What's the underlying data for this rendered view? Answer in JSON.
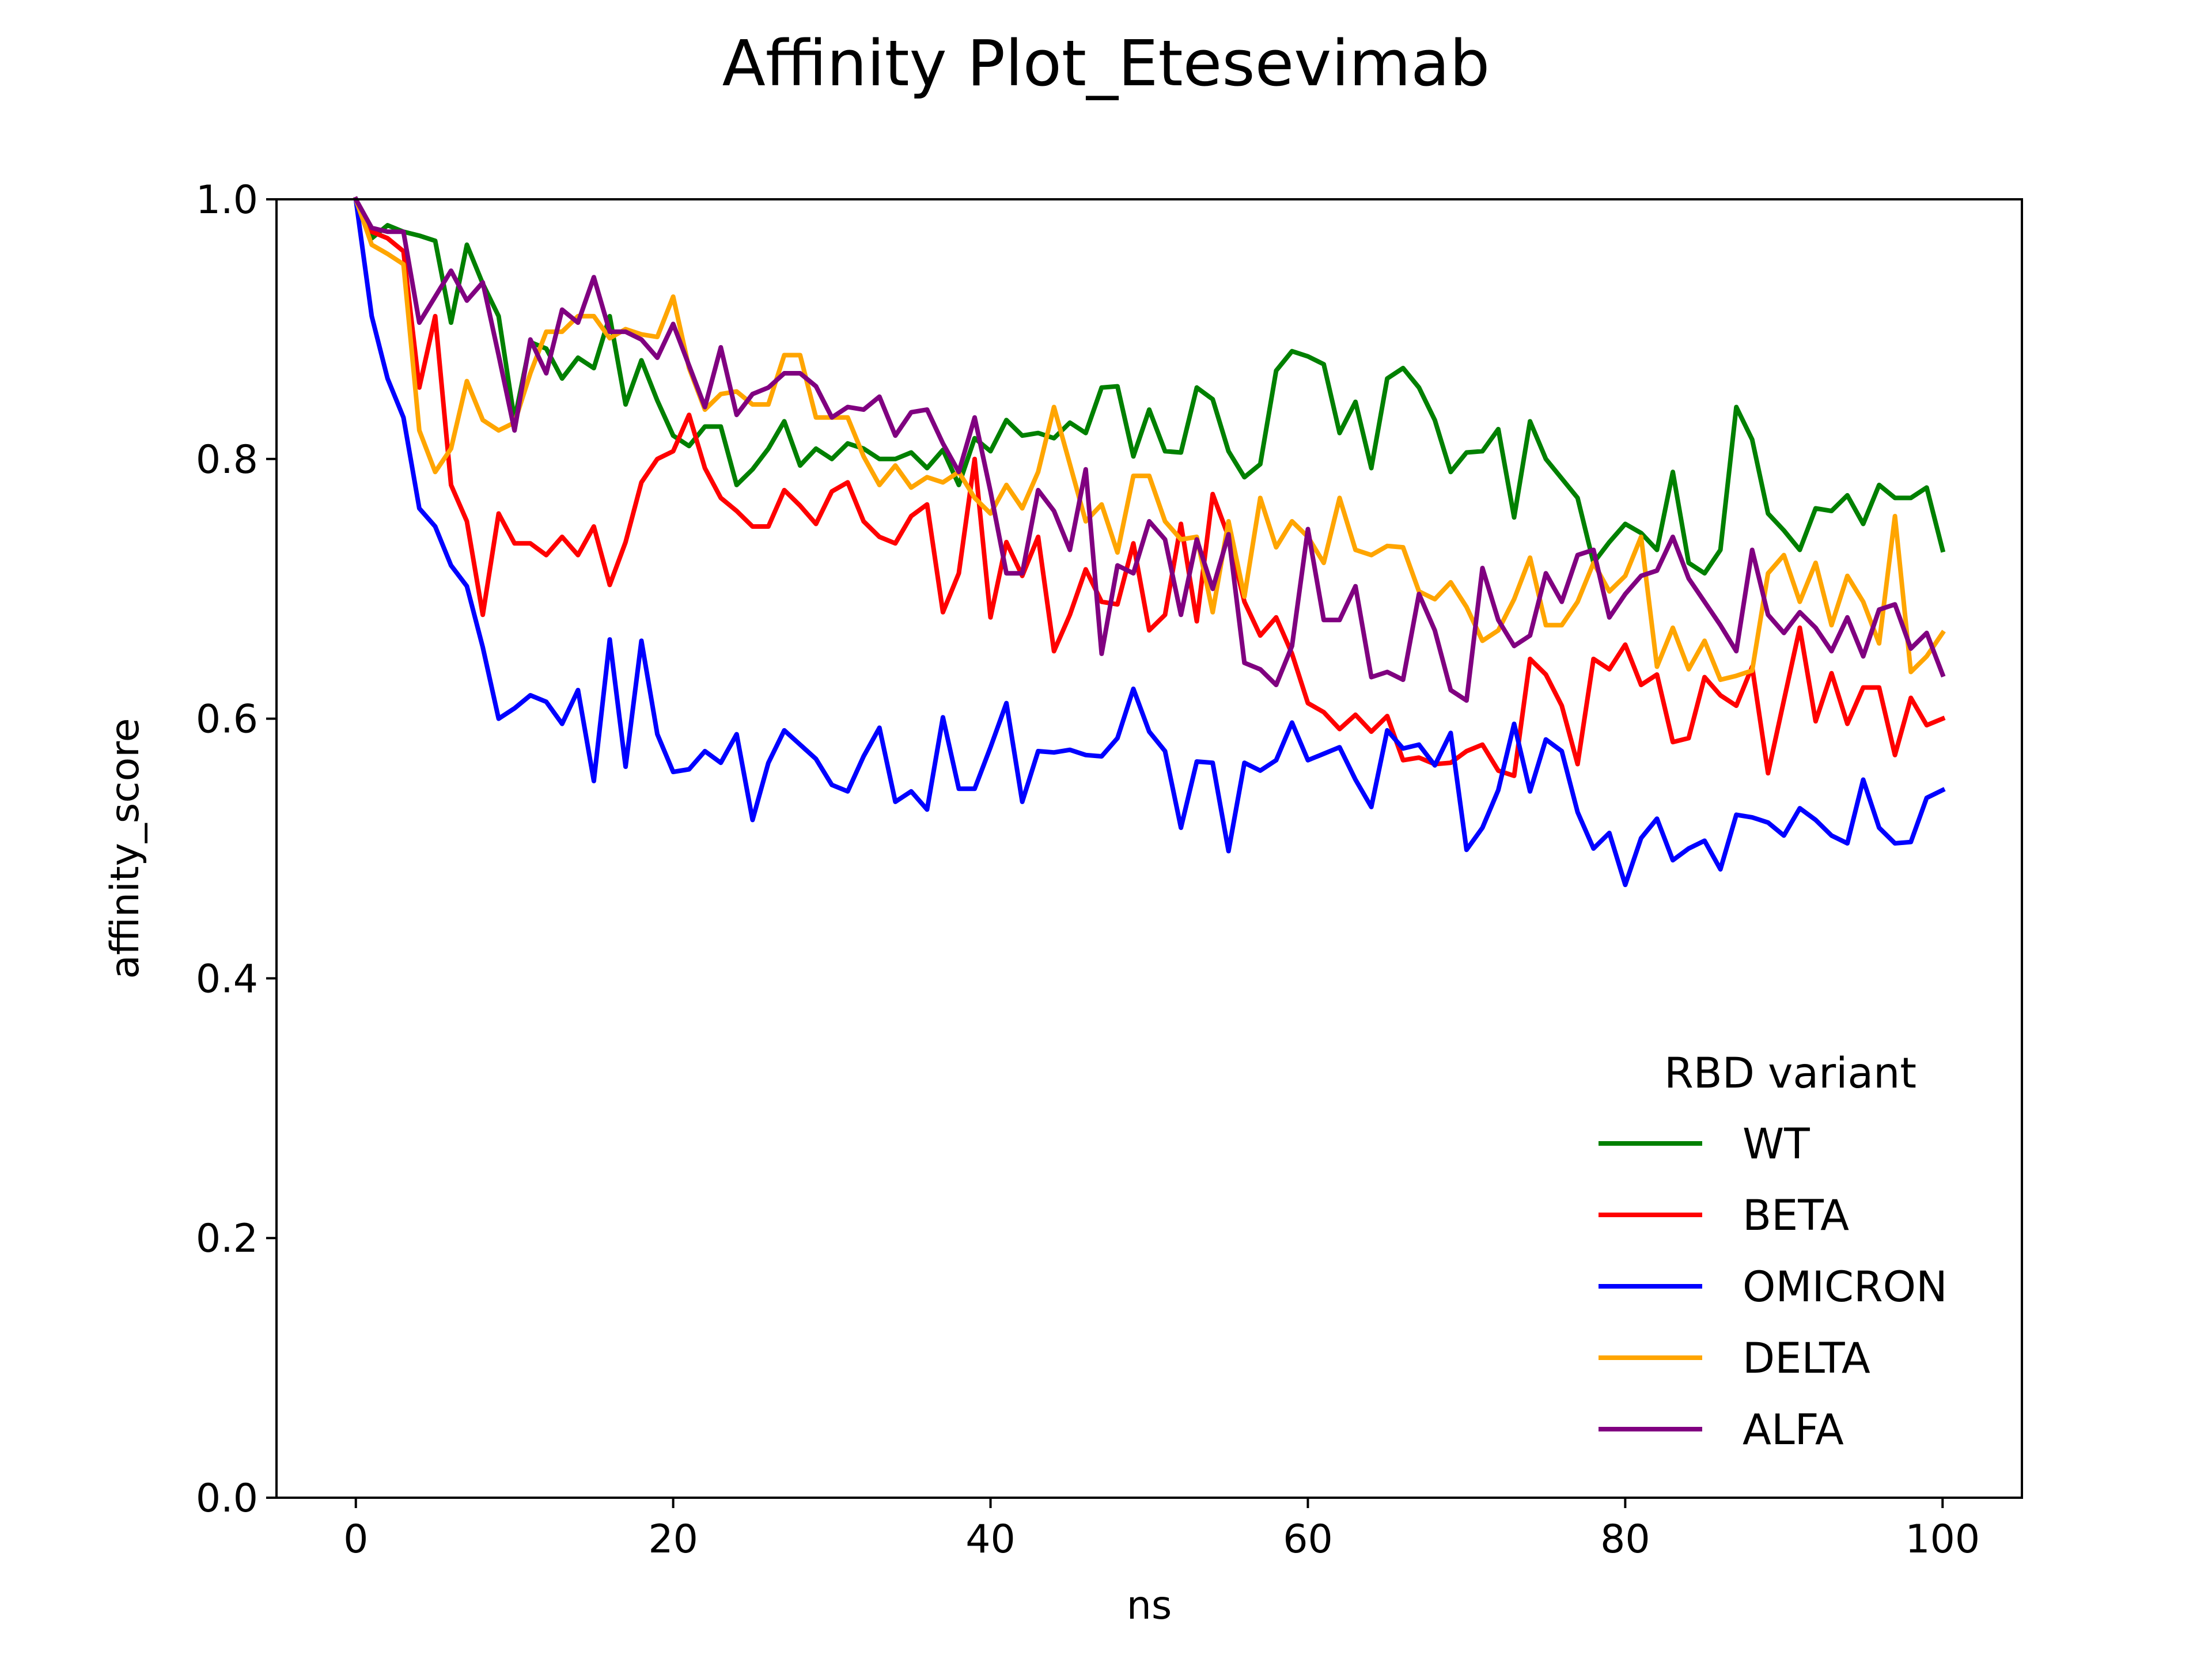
{
  "chart_data": {
    "type": "line",
    "title": "Affinity Plot_Etesevimab",
    "xlabel": "ns",
    "ylabel": "affinity_score",
    "xlim": [
      -5,
      105
    ],
    "ylim": [
      0,
      1
    ],
    "xticks": [
      0,
      20,
      40,
      60,
      80,
      100
    ],
    "xtick_labels": [
      "0",
      "20",
      "40",
      "60",
      "80",
      "100"
    ],
    "yticks": [
      0,
      0.2,
      0.4,
      0.6,
      0.8,
      1.0
    ],
    "ytick_labels": [
      "0.0",
      "0.2",
      "0.4",
      "0.6",
      "0.8",
      "1.0"
    ],
    "grid": false,
    "legend": {
      "title": "RBD variant",
      "placement": "lower-right"
    },
    "x": [
      0,
      1,
      2,
      3,
      4,
      5,
      6,
      7,
      8,
      9,
      10,
      11,
      12,
      13,
      14,
      15,
      16,
      17,
      18,
      19,
      20,
      21,
      22,
      23,
      24,
      25,
      26,
      27,
      28,
      29,
      30,
      31,
      32,
      33,
      34,
      35,
      36,
      37,
      38,
      39,
      40,
      41,
      42,
      43,
      44,
      45,
      46,
      47,
      48,
      49,
      50,
      51,
      52,
      53,
      54,
      55,
      56,
      57,
      58,
      59,
      60,
      61,
      62,
      63,
      64,
      65,
      66,
      67,
      68,
      69,
      70,
      71,
      72,
      73,
      74,
      75,
      76,
      77,
      78,
      79,
      80,
      81,
      82,
      83,
      84,
      85,
      86,
      87,
      88,
      89,
      90,
      91,
      92,
      93,
      94,
      95,
      96,
      97,
      98,
      99,
      100
    ],
    "series": [
      {
        "name": "WT",
        "color": "#008000",
        "values": [
          1.0,
          0.97,
          0.98,
          0.975,
          0.972,
          0.968,
          0.905,
          0.965,
          0.935,
          0.91,
          0.83,
          0.89,
          0.885,
          0.862,
          0.878,
          0.87,
          0.91,
          0.842,
          0.876,
          0.845,
          0.818,
          0.81,
          0.825,
          0.825,
          0.78,
          0.792,
          0.808,
          0.829,
          0.795,
          0.808,
          0.8,
          0.812,
          0.808,
          0.8,
          0.8,
          0.805,
          0.793,
          0.807,
          0.78,
          0.816,
          0.806,
          0.83,
          0.818,
          0.82,
          0.816,
          0.828,
          0.82,
          0.855,
          0.856,
          0.802,
          0.838,
          0.806,
          0.805,
          0.855,
          0.846,
          0.806,
          0.786,
          0.796,
          0.868,
          0.883,
          0.879,
          0.873,
          0.82,
          0.844,
          0.793,
          0.862,
          0.87,
          0.855,
          0.83,
          0.79,
          0.805,
          0.806,
          0.823,
          0.755,
          0.829,
          0.8,
          0.785,
          0.77,
          0.72,
          0.736,
          0.75,
          0.743,
          0.73,
          0.79,
          0.72,
          0.712,
          0.73,
          0.84,
          0.815,
          0.758,
          0.745,
          0.73,
          0.762,
          0.76,
          0.772,
          0.75,
          0.78,
          0.77,
          0.77,
          0.778,
          0.73
        ]
      },
      {
        "name": "BETA",
        "color": "#ff0000",
        "values": [
          1.0,
          0.975,
          0.97,
          0.96,
          0.855,
          0.91,
          0.78,
          0.752,
          0.68,
          0.758,
          0.735,
          0.735,
          0.726,
          0.74,
          0.726,
          0.748,
          0.703,
          0.736,
          0.782,
          0.8,
          0.806,
          0.834,
          0.793,
          0.77,
          0.76,
          0.748,
          0.748,
          0.776,
          0.764,
          0.75,
          0.775,
          0.782,
          0.752,
          0.74,
          0.735,
          0.756,
          0.765,
          0.682,
          0.712,
          0.8,
          0.678,
          0.736,
          0.71,
          0.74,
          0.652,
          0.68,
          0.715,
          0.69,
          0.688,
          0.735,
          0.668,
          0.68,
          0.75,
          0.675,
          0.773,
          0.74,
          0.69,
          0.664,
          0.678,
          0.65,
          0.612,
          0.605,
          0.592,
          0.603,
          0.59,
          0.602,
          0.568,
          0.57,
          0.565,
          0.566,
          0.575,
          0.58,
          0.56,
          0.556,
          0.646,
          0.634,
          0.61,
          0.565,
          0.646,
          0.638,
          0.657,
          0.626,
          0.634,
          0.582,
          0.585,
          0.632,
          0.618,
          0.61,
          0.64,
          0.558,
          0.614,
          0.67,
          0.598,
          0.635,
          0.596,
          0.624,
          0.624,
          0.572,
          0.616,
          0.595,
          0.6
        ]
      },
      {
        "name": "OMICRON",
        "color": "#0000ff",
        "values": [
          1.0,
          0.91,
          0.862,
          0.832,
          0.762,
          0.748,
          0.718,
          0.702,
          0.655,
          0.6,
          0.608,
          0.618,
          0.613,
          0.596,
          0.622,
          0.552,
          0.661,
          0.563,
          0.66,
          0.588,
          0.559,
          0.561,
          0.575,
          0.566,
          0.588,
          0.522,
          0.566,
          0.591,
          0.58,
          0.569,
          0.549,
          0.544,
          0.571,
          0.593,
          0.536,
          0.544,
          0.53,
          0.601,
          0.546,
          0.546,
          0.578,
          0.612,
          0.536,
          0.575,
          0.574,
          0.576,
          0.572,
          0.571,
          0.585,
          0.623,
          0.59,
          0.575,
          0.516,
          0.567,
          0.566,
          0.498,
          0.566,
          0.56,
          0.568,
          0.597,
          0.568,
          0.573,
          0.578,
          0.553,
          0.532,
          0.591,
          0.577,
          0.58,
          0.564,
          0.589,
          0.499,
          0.516,
          0.545,
          0.596,
          0.544,
          0.584,
          0.575,
          0.528,
          0.5,
          0.512,
          0.472,
          0.508,
          0.523,
          0.491,
          0.5,
          0.506,
          0.484,
          0.526,
          0.524,
          0.52,
          0.51,
          0.531,
          0.522,
          0.51,
          0.504,
          0.553,
          0.516,
          0.504,
          0.505,
          0.539,
          0.545
        ]
      },
      {
        "name": "DELTA",
        "color": "#ffa500",
        "values": [
          1.0,
          0.965,
          0.958,
          0.95,
          0.822,
          0.79,
          0.808,
          0.86,
          0.83,
          0.822,
          0.828,
          0.866,
          0.898,
          0.898,
          0.91,
          0.91,
          0.893,
          0.9,
          0.896,
          0.894,
          0.925,
          0.87,
          0.838,
          0.85,
          0.852,
          0.842,
          0.842,
          0.88,
          0.88,
          0.832,
          0.832,
          0.832,
          0.802,
          0.78,
          0.795,
          0.778,
          0.786,
          0.782,
          0.79,
          0.77,
          0.758,
          0.78,
          0.762,
          0.79,
          0.84,
          0.796,
          0.752,
          0.765,
          0.728,
          0.787,
          0.787,
          0.752,
          0.738,
          0.74,
          0.682,
          0.752,
          0.694,
          0.77,
          0.732,
          0.752,
          0.74,
          0.72,
          0.77,
          0.73,
          0.726,
          0.733,
          0.732,
          0.698,
          0.692,
          0.705,
          0.686,
          0.66,
          0.668,
          0.692,
          0.724,
          0.672,
          0.672,
          0.69,
          0.72,
          0.698,
          0.71,
          0.74,
          0.64,
          0.67,
          0.638,
          0.66,
          0.63,
          0.633,
          0.637,
          0.712,
          0.726,
          0.69,
          0.72,
          0.672,
          0.71,
          0.69,
          0.658,
          0.756,
          0.636,
          0.648,
          0.666
        ]
      },
      {
        "name": "ALFA",
        "color": "#800080",
        "values": [
          1.0,
          0.978,
          0.975,
          0.975,
          0.905,
          0.925,
          0.945,
          0.922,
          0.936,
          0.88,
          0.822,
          0.892,
          0.866,
          0.915,
          0.905,
          0.94,
          0.898,
          0.898,
          0.892,
          0.878,
          0.904,
          0.872,
          0.84,
          0.886,
          0.834,
          0.85,
          0.855,
          0.866,
          0.866,
          0.856,
          0.832,
          0.84,
          0.838,
          0.848,
          0.818,
          0.836,
          0.838,
          0.812,
          0.79,
          0.832,
          0.775,
          0.712,
          0.712,
          0.776,
          0.76,
          0.73,
          0.792,
          0.65,
          0.718,
          0.712,
          0.752,
          0.738,
          0.68,
          0.738,
          0.7,
          0.742,
          0.643,
          0.638,
          0.626,
          0.656,
          0.746,
          0.676,
          0.676,
          0.702,
          0.632,
          0.636,
          0.63,
          0.696,
          0.668,
          0.622,
          0.614,
          0.716,
          0.676,
          0.656,
          0.664,
          0.712,
          0.69,
          0.726,
          0.73,
          0.678,
          0.696,
          0.71,
          0.714,
          0.74,
          0.708,
          0.69,
          0.672,
          0.652,
          0.73,
          0.68,
          0.666,
          0.682,
          0.67,
          0.652,
          0.678,
          0.648,
          0.684,
          0.688,
          0.654,
          0.666,
          0.634
        ]
      }
    ]
  }
}
